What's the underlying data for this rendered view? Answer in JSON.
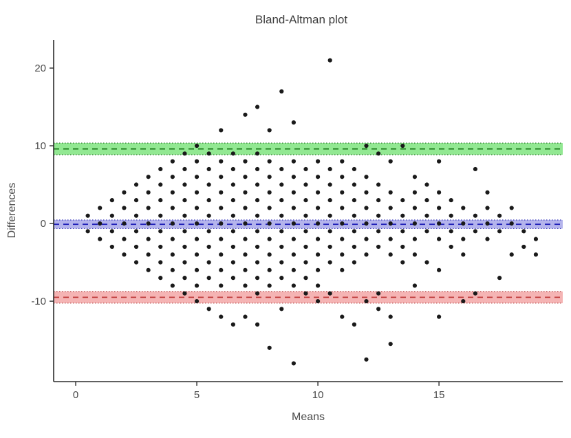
{
  "chart_data": {
    "type": "scatter",
    "title": "Bland-Altman plot",
    "xlabel": "Means",
    "ylabel": "Differences",
    "xlim": [
      -0.91,
      20.11
    ],
    "ylim": [
      -20.35,
      23.63
    ],
    "xticks": [
      0,
      5,
      10,
      15
    ],
    "yticks": [
      -10,
      0,
      10,
      20
    ],
    "grid": false,
    "point_color": "#1a1a1a",
    "axis_color": "#2b2b2b",
    "lines": {
      "upper_loa": {
        "value": 9.6,
        "ci": [
          8.85,
          10.35
        ],
        "line_color": "#1e7d1e",
        "edge_color": "#1a6b1a",
        "band_color": "#92e892"
      },
      "mean": {
        "value": -0.1,
        "ci": [
          -0.65,
          0.45
        ],
        "line_color": "#2222b8",
        "edge_color": "#2424b4",
        "band_color": "#b4b4ec"
      },
      "lower_loa": {
        "value": -9.5,
        "ci": [
          -10.25,
          -8.75
        ],
        "line_color": "#bf3b3b",
        "edge_color": "#ad3030",
        "band_color": "#f5b4b4"
      }
    },
    "points": [
      [
        0.5,
        1
      ],
      [
        0.5,
        -1
      ],
      [
        1,
        0
      ],
      [
        1,
        2
      ],
      [
        1,
        -2
      ],
      [
        1.5,
        1
      ],
      [
        1.5,
        -1
      ],
      [
        1.5,
        3
      ],
      [
        1.5,
        -3
      ],
      [
        2,
        0
      ],
      [
        2,
        2
      ],
      [
        2,
        -2
      ],
      [
        2,
        4
      ],
      [
        2,
        -4
      ],
      [
        2.5,
        1
      ],
      [
        2.5,
        -1
      ],
      [
        2.5,
        3
      ],
      [
        2.5,
        -3
      ],
      [
        2.5,
        5
      ],
      [
        2.5,
        -5
      ],
      [
        3,
        0
      ],
      [
        3,
        2
      ],
      [
        3,
        -2
      ],
      [
        3,
        4
      ],
      [
        3,
        -4
      ],
      [
        3,
        6
      ],
      [
        3,
        -6
      ],
      [
        3.5,
        1
      ],
      [
        3.5,
        -1
      ],
      [
        3.5,
        3
      ],
      [
        3.5,
        -3
      ],
      [
        3.5,
        5
      ],
      [
        3.5,
        -5
      ],
      [
        3.5,
        7
      ],
      [
        3.5,
        -7
      ],
      [
        4,
        0
      ],
      [
        4,
        2
      ],
      [
        4,
        -2
      ],
      [
        4,
        4
      ],
      [
        4,
        -4
      ],
      [
        4,
        6
      ],
      [
        4,
        -6
      ],
      [
        4,
        8
      ],
      [
        4,
        -8
      ],
      [
        4.5,
        1
      ],
      [
        4.5,
        -1
      ],
      [
        4.5,
        3
      ],
      [
        4.5,
        -3
      ],
      [
        4.5,
        5
      ],
      [
        4.5,
        -5
      ],
      [
        4.5,
        7
      ],
      [
        4.5,
        -7
      ],
      [
        4.5,
        9
      ],
      [
        4.5,
        -9
      ],
      [
        5,
        0
      ],
      [
        5,
        2
      ],
      [
        5,
        -2
      ],
      [
        5,
        4
      ],
      [
        5,
        -4
      ],
      [
        5,
        6
      ],
      [
        5,
        -6
      ],
      [
        5,
        8
      ],
      [
        5,
        -8
      ],
      [
        5,
        10
      ],
      [
        5,
        -10
      ],
      [
        5.5,
        1
      ],
      [
        5.5,
        -1
      ],
      [
        5.5,
        3
      ],
      [
        5.5,
        -3
      ],
      [
        5.5,
        5
      ],
      [
        5.5,
        -5
      ],
      [
        5.5,
        7
      ],
      [
        5.5,
        -7
      ],
      [
        5.5,
        9
      ],
      [
        5.5,
        -11
      ],
      [
        6,
        0
      ],
      [
        6,
        2
      ],
      [
        6,
        -2
      ],
      [
        6,
        4
      ],
      [
        6,
        -4
      ],
      [
        6,
        6
      ],
      [
        6,
        -6
      ],
      [
        6,
        8
      ],
      [
        6,
        -8
      ],
      [
        6,
        12
      ],
      [
        6,
        -12
      ],
      [
        6.5,
        1
      ],
      [
        6.5,
        -1
      ],
      [
        6.5,
        3
      ],
      [
        6.5,
        -3
      ],
      [
        6.5,
        5
      ],
      [
        6.5,
        -5
      ],
      [
        6.5,
        7
      ],
      [
        6.5,
        -7
      ],
      [
        6.5,
        9
      ],
      [
        6.5,
        -13
      ],
      [
        7,
        0
      ],
      [
        7,
        2
      ],
      [
        7,
        -2
      ],
      [
        7,
        4
      ],
      [
        7,
        -4
      ],
      [
        7,
        6
      ],
      [
        7,
        -6
      ],
      [
        7,
        8
      ],
      [
        7,
        -8
      ],
      [
        7,
        14
      ],
      [
        7,
        -12
      ],
      [
        7.5,
        1
      ],
      [
        7.5,
        -1
      ],
      [
        7.5,
        3
      ],
      [
        7.5,
        -3
      ],
      [
        7.5,
        5
      ],
      [
        7.5,
        -5
      ],
      [
        7.5,
        7
      ],
      [
        7.5,
        -7
      ],
      [
        7.5,
        9
      ],
      [
        7.5,
        -9
      ],
      [
        7.5,
        15
      ],
      [
        7.5,
        -13
      ],
      [
        8,
        0
      ],
      [
        8,
        2
      ],
      [
        8,
        -2
      ],
      [
        8,
        4
      ],
      [
        8,
        -4
      ],
      [
        8,
        6
      ],
      [
        8,
        -6
      ],
      [
        8,
        8
      ],
      [
        8,
        -8
      ],
      [
        8,
        12
      ],
      [
        8,
        -16
      ],
      [
        8.5,
        1
      ],
      [
        8.5,
        -1
      ],
      [
        8.5,
        3
      ],
      [
        8.5,
        -3
      ],
      [
        8.5,
        5
      ],
      [
        8.5,
        -5
      ],
      [
        8.5,
        7
      ],
      [
        8.5,
        -7
      ],
      [
        8.5,
        17
      ],
      [
        8.5,
        -11
      ],
      [
        9,
        0
      ],
      [
        9,
        2
      ],
      [
        9,
        -2
      ],
      [
        9,
        4
      ],
      [
        9,
        -4
      ],
      [
        9,
        6
      ],
      [
        9,
        -6
      ],
      [
        9,
        8
      ],
      [
        9,
        -8
      ],
      [
        9,
        13
      ],
      [
        9,
        -18
      ],
      [
        9.5,
        1
      ],
      [
        9.5,
        -1
      ],
      [
        9.5,
        3
      ],
      [
        9.5,
        -3
      ],
      [
        9.5,
        5
      ],
      [
        9.5,
        -5
      ],
      [
        9.5,
        7
      ],
      [
        9.5,
        -7
      ],
      [
        9.5,
        -9
      ],
      [
        10,
        0
      ],
      [
        10,
        2
      ],
      [
        10,
        -2
      ],
      [
        10,
        4
      ],
      [
        10,
        -4
      ],
      [
        10,
        6
      ],
      [
        10,
        -6
      ],
      [
        10,
        8
      ],
      [
        10,
        -8
      ],
      [
        10,
        -10
      ],
      [
        10.5,
        1
      ],
      [
        10.5,
        -1
      ],
      [
        10.5,
        3
      ],
      [
        10.5,
        -3
      ],
      [
        10.5,
        5
      ],
      [
        10.5,
        -5
      ],
      [
        10.5,
        7
      ],
      [
        10.5,
        21
      ],
      [
        10.5,
        -9
      ],
      [
        11,
        0
      ],
      [
        11,
        2
      ],
      [
        11,
        -2
      ],
      [
        11,
        4
      ],
      [
        11,
        -4
      ],
      [
        11,
        6
      ],
      [
        11,
        -6
      ],
      [
        11,
        8
      ],
      [
        11,
        -12
      ],
      [
        11.5,
        1
      ],
      [
        11.5,
        -1
      ],
      [
        11.5,
        3
      ],
      [
        11.5,
        -3
      ],
      [
        11.5,
        5
      ],
      [
        11.5,
        -5
      ],
      [
        11.5,
        7
      ],
      [
        11.5,
        -13
      ],
      [
        12,
        0
      ],
      [
        12,
        2
      ],
      [
        12,
        -2
      ],
      [
        12,
        4
      ],
      [
        12,
        -4
      ],
      [
        12,
        6
      ],
      [
        12,
        10
      ],
      [
        12,
        -10
      ],
      [
        12,
        -17.5
      ],
      [
        12.5,
        1
      ],
      [
        12.5,
        -1
      ],
      [
        12.5,
        3
      ],
      [
        12.5,
        -3
      ],
      [
        12.5,
        5
      ],
      [
        12.5,
        9
      ],
      [
        12.5,
        -9
      ],
      [
        12.5,
        -11
      ],
      [
        13,
        0
      ],
      [
        13,
        2
      ],
      [
        13,
        -2
      ],
      [
        13,
        4
      ],
      [
        13,
        -4
      ],
      [
        13,
        8
      ],
      [
        13,
        -12
      ],
      [
        13,
        -15.5
      ],
      [
        13.5,
        1
      ],
      [
        13.5,
        -1
      ],
      [
        13.5,
        3
      ],
      [
        13.5,
        -3
      ],
      [
        13.5,
        10
      ],
      [
        13.5,
        -5
      ],
      [
        14,
        0
      ],
      [
        14,
        2
      ],
      [
        14,
        -2
      ],
      [
        14,
        4
      ],
      [
        14,
        -4
      ],
      [
        14,
        6
      ],
      [
        14,
        -8
      ],
      [
        14.5,
        1
      ],
      [
        14.5,
        -1
      ],
      [
        14.5,
        3
      ],
      [
        14.5,
        5
      ],
      [
        14.5,
        -5
      ],
      [
        15,
        0
      ],
      [
        15,
        2
      ],
      [
        15,
        -2
      ],
      [
        15,
        4
      ],
      [
        15,
        8
      ],
      [
        15,
        -6
      ],
      [
        15,
        -12
      ],
      [
        15.5,
        1
      ],
      [
        15.5,
        -1
      ],
      [
        15.5,
        3
      ],
      [
        15.5,
        -3
      ],
      [
        16,
        0
      ],
      [
        16,
        2
      ],
      [
        16,
        -2
      ],
      [
        16,
        -4
      ],
      [
        16,
        -10
      ],
      [
        16.5,
        1
      ],
      [
        16.5,
        -1
      ],
      [
        16.5,
        7
      ],
      [
        16.5,
        -9
      ],
      [
        17,
        0
      ],
      [
        17,
        2
      ],
      [
        17,
        -2
      ],
      [
        17,
        4
      ],
      [
        17.5,
        1
      ],
      [
        17.5,
        -1
      ],
      [
        17.5,
        -7
      ],
      [
        18,
        0
      ],
      [
        18,
        2
      ],
      [
        18,
        -4
      ],
      [
        18.5,
        -1
      ],
      [
        18.5,
        -3
      ],
      [
        19,
        -2
      ],
      [
        19,
        -4
      ]
    ]
  }
}
